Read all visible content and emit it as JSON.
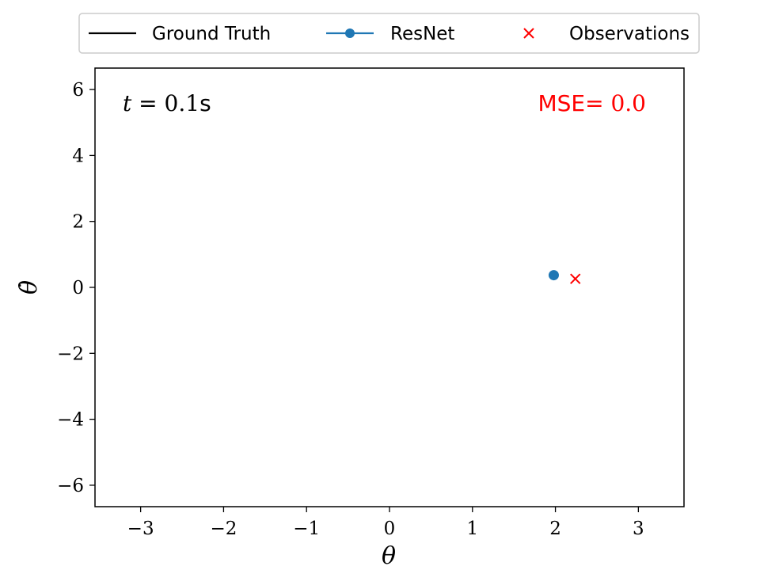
{
  "chart_data": {
    "type": "scatter",
    "xlabel": "θ",
    "ylabel": "θ̇",
    "xlim": [
      -3.55,
      3.55
    ],
    "ylim": [
      -6.65,
      6.65
    ],
    "xticks": [
      -3,
      -2,
      -1,
      0,
      1,
      2,
      3
    ],
    "yticks": [
      -6,
      -4,
      -2,
      0,
      2,
      4,
      6
    ],
    "grid": false,
    "legend_position": "top",
    "annotations": {
      "time": {
        "var": "t",
        "eq": " = ",
        "value": "0.1",
        "unit": "s"
      },
      "mse": {
        "label": "MSE",
        "eq": "= ",
        "value": "0.0"
      }
    },
    "series": [
      {
        "name": "Ground Truth",
        "marker": "line",
        "color": "#000000",
        "x": [],
        "y": []
      },
      {
        "name": "ResNet",
        "marker": "circle-line",
        "color": "#1f77b4",
        "x": [
          1.98
        ],
        "y": [
          0.37
        ]
      },
      {
        "name": "Observations",
        "marker": "x",
        "color": "#ff0000",
        "x": [
          2.24
        ],
        "y": [
          0.26
        ]
      }
    ]
  }
}
